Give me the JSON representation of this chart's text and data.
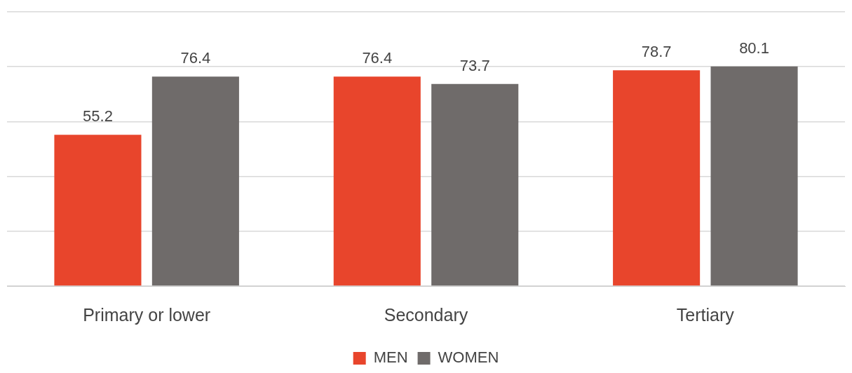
{
  "chart_data": {
    "type": "bar",
    "categories": [
      "Primary or lower",
      "Secondary",
      "Tertiary"
    ],
    "series": [
      {
        "name": "MEN",
        "color": "#e8452c",
        "values": [
          55.2,
          76.4,
          78.7
        ]
      },
      {
        "name": "WOMEN",
        "color": "#6f6b6a",
        "values": [
          76.4,
          73.7,
          80.1
        ]
      }
    ],
    "ylim": [
      0,
      100
    ],
    "yticks": [
      {
        "value": 0,
        "label": null
      },
      {
        "value": 20,
        "label": null
      },
      {
        "value": 40,
        "label": null
      },
      {
        "value": 60,
        "label": null
      },
      {
        "value": 80,
        "label": null
      },
      {
        "value": 100,
        "label": null
      }
    ],
    "tick_labels": "x",
    "grid": "y",
    "legend": "bottom",
    "data_labels": true
  }
}
